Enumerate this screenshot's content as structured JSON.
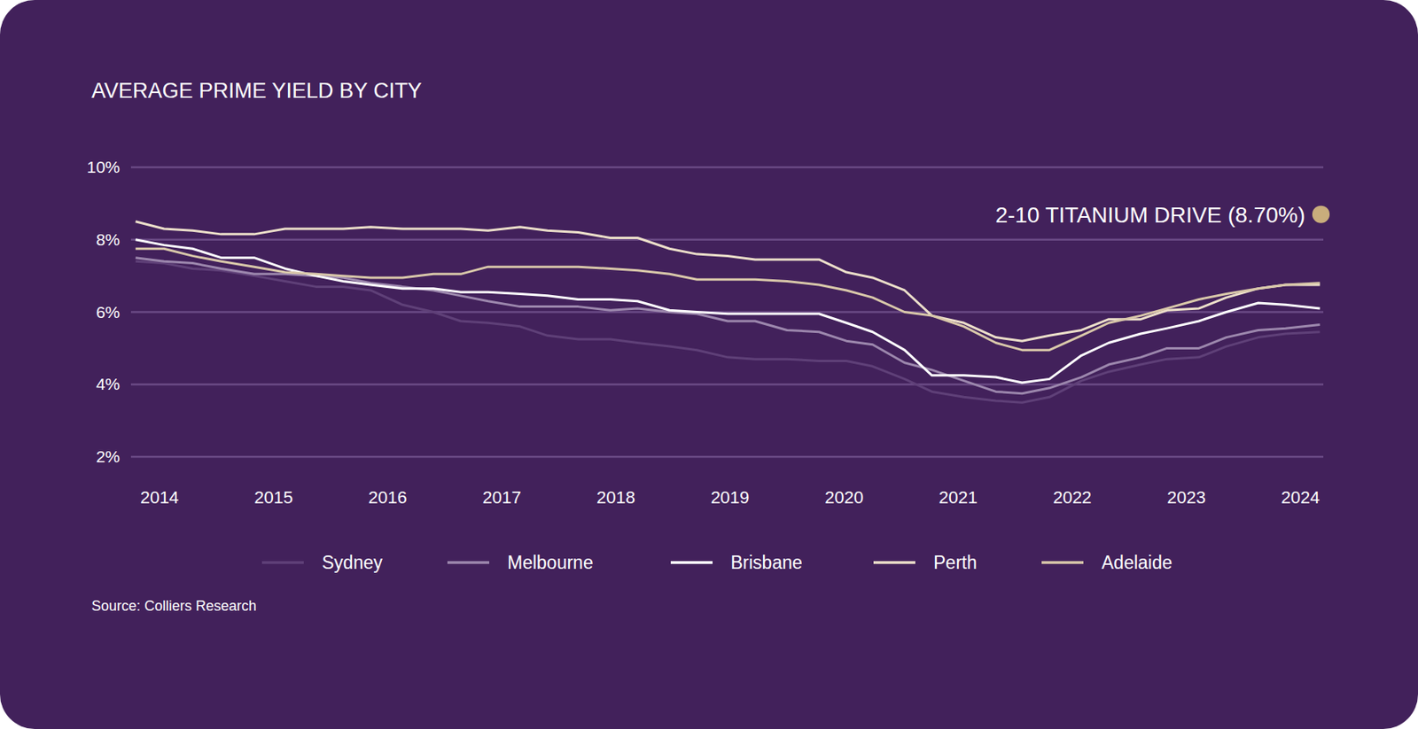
{
  "chart_data": {
    "type": "line",
    "title": "AVERAGE PRIME YIELD BY CITY",
    "source": "Source: Colliers Research",
    "x": [
      2013.79,
      2014.04,
      2014.29,
      2014.54,
      2014.83,
      2015.1,
      2015.37,
      2015.61,
      2015.85,
      2016.13,
      2016.4,
      2016.64,
      2016.88,
      2017.16,
      2017.4,
      2017.67,
      2017.95,
      2018.19,
      2018.47,
      2018.71,
      2018.98,
      2019.22,
      2019.5,
      2019.78,
      2020.02,
      2020.25,
      2020.53,
      2020.77,
      2021.05,
      2021.33,
      2021.56,
      2021.8,
      2022.08,
      2022.32,
      2022.6,
      2022.83,
      2023.11,
      2023.35,
      2023.63,
      2023.87,
      2024.17
    ],
    "xlim": [
      2013.75,
      2024.2
    ],
    "xticks": [
      2014,
      2015,
      2016,
      2017,
      2018,
      2019,
      2020,
      2021,
      2022,
      2023,
      2024
    ],
    "ylim": [
      2,
      10
    ],
    "yticks": [
      {
        "value": 2,
        "label": "2%"
      },
      {
        "value": 4,
        "label": "4%"
      },
      {
        "value": 6,
        "label": "6%"
      },
      {
        "value": 8,
        "label": "8%"
      },
      {
        "value": 10,
        "label": "10%"
      }
    ],
    "grid": true,
    "legend": "bottom",
    "series": [
      {
        "name": "Sydney",
        "color": "#5f4078",
        "values": [
          7.4,
          7.35,
          7.2,
          7.15,
          7.0,
          6.85,
          6.7,
          6.7,
          6.6,
          6.2,
          6.0,
          5.75,
          5.7,
          5.6,
          5.35,
          5.25,
          5.25,
          5.15,
          5.05,
          4.95,
          4.75,
          4.7,
          4.7,
          4.65,
          4.65,
          4.5,
          4.15,
          3.8,
          3.65,
          3.55,
          3.5,
          3.65,
          4.1,
          4.35,
          4.55,
          4.7,
          4.75,
          5.05,
          5.3,
          5.4,
          5.45
        ]
      },
      {
        "name": "Melbourne",
        "color": "#9c87ad",
        "values": [
          7.5,
          7.4,
          7.35,
          7.2,
          7.05,
          7.05,
          7.0,
          6.95,
          6.8,
          6.7,
          6.6,
          6.45,
          6.3,
          6.15,
          6.15,
          6.15,
          6.05,
          6.1,
          6.0,
          5.95,
          5.75,
          5.75,
          5.5,
          5.45,
          5.2,
          5.1,
          4.6,
          4.4,
          4.1,
          3.8,
          3.75,
          3.9,
          4.2,
          4.55,
          4.75,
          5.0,
          5.0,
          5.3,
          5.5,
          5.55,
          5.65
        ]
      },
      {
        "name": "Brisbane",
        "color": "#ffffff",
        "values": [
          8.0,
          7.85,
          7.75,
          7.5,
          7.5,
          7.2,
          7.0,
          6.85,
          6.75,
          6.65,
          6.65,
          6.55,
          6.55,
          6.5,
          6.45,
          6.35,
          6.35,
          6.3,
          6.05,
          6.0,
          5.95,
          5.95,
          5.95,
          5.95,
          5.7,
          5.45,
          4.95,
          4.25,
          4.25,
          4.2,
          4.05,
          4.15,
          4.8,
          5.15,
          5.4,
          5.55,
          5.75,
          6.0,
          6.25,
          6.2,
          6.1
        ]
      },
      {
        "name": "Perth",
        "color": "#ecdfca",
        "values": [
          8.5,
          8.3,
          8.25,
          8.15,
          8.15,
          8.3,
          8.3,
          8.3,
          8.35,
          8.3,
          8.3,
          8.3,
          8.25,
          8.35,
          8.25,
          8.2,
          8.05,
          8.05,
          7.75,
          7.6,
          7.55,
          7.45,
          7.45,
          7.45,
          7.1,
          6.95,
          6.6,
          5.9,
          5.7,
          5.3,
          5.2,
          5.35,
          5.5,
          5.8,
          5.8,
          6.05,
          6.1,
          6.4,
          6.65,
          6.75,
          6.75
        ]
      },
      {
        "name": "Adelaide",
        "color": "#d9c8aa",
        "values": [
          7.75,
          7.75,
          7.55,
          7.4,
          7.25,
          7.1,
          7.05,
          7.0,
          6.95,
          6.95,
          7.05,
          7.05,
          7.25,
          7.25,
          7.25,
          7.25,
          7.2,
          7.15,
          7.05,
          6.9,
          6.9,
          6.9,
          6.85,
          6.75,
          6.6,
          6.4,
          6.0,
          5.9,
          5.6,
          5.15,
          4.95,
          4.95,
          5.35,
          5.7,
          5.9,
          6.1,
          6.35,
          6.5,
          6.65,
          6.75,
          6.8
        ]
      }
    ],
    "annotations": [
      {
        "text": "2-10 TITANIUM DRIVE (8.70%)",
        "y": 8.7,
        "color": "#c9ad7c"
      }
    ]
  }
}
